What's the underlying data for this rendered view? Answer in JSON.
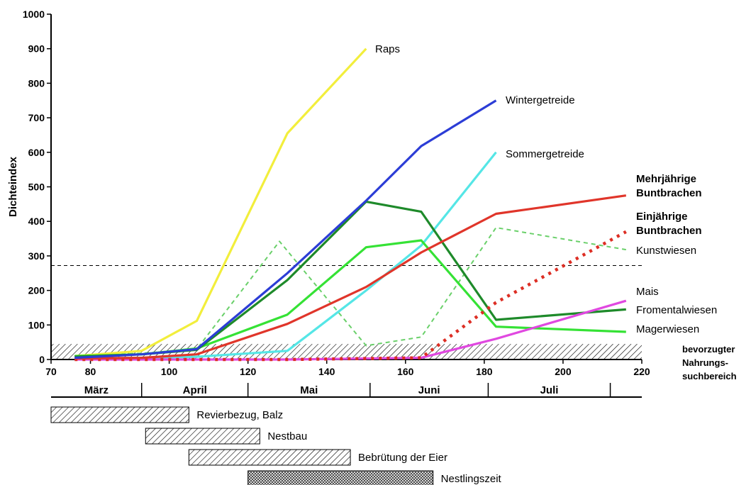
{
  "chart_data": {
    "type": "line",
    "title": "",
    "xlabel": "",
    "ylabel": "Dichteindex",
    "xlim": [
      70,
      220
    ],
    "ylim": [
      0,
      1000
    ],
    "x_ticks": [
      70,
      80,
      100,
      120,
      140,
      160,
      180,
      200,
      220
    ],
    "y_ticks": [
      0,
      100,
      200,
      300,
      400,
      500,
      600,
      700,
      800,
      900,
      1000
    ],
    "grid": false,
    "reference_line": {
      "y": 272,
      "style": "dashed"
    },
    "preferred_zone": {
      "y_min": 0,
      "y_max": 45,
      "label": [
        "bevorzugter",
        "Nahrungs-",
        "suchbereich"
      ]
    },
    "series": [
      {
        "name": "Raps",
        "color": "#f2ee3c",
        "style": "solid",
        "label_bold": false,
        "points": [
          [
            76,
            10
          ],
          [
            93,
            25
          ],
          [
            107,
            112
          ],
          [
            130,
            655
          ],
          [
            150,
            900
          ]
        ]
      },
      {
        "name": "Wintergetreide",
        "color": "#2c3dd6",
        "style": "solid",
        "label_bold": false,
        "points": [
          [
            76,
            5
          ],
          [
            93,
            15
          ],
          [
            107,
            30
          ],
          [
            130,
            250
          ],
          [
            150,
            460
          ],
          [
            164,
            618
          ],
          [
            183,
            750
          ]
        ]
      },
      {
        "name": "Sommergetreide",
        "color": "#55e6e6",
        "style": "solid",
        "label_bold": false,
        "points": [
          [
            76,
            3
          ],
          [
            93,
            5
          ],
          [
            107,
            8
          ],
          [
            130,
            25
          ],
          [
            150,
            200
          ],
          [
            164,
            330
          ],
          [
            183,
            600
          ]
        ]
      },
      {
        "name": "Mehrjährige Buntbrachen",
        "label_lines": [
          "Mehrjährige",
          "Buntbrachen"
        ],
        "color": "#e0352a",
        "style": "solid",
        "label_bold": true,
        "points": [
          [
            76,
            3
          ],
          [
            93,
            5
          ],
          [
            107,
            15
          ],
          [
            130,
            103
          ],
          [
            150,
            210
          ],
          [
            164,
            310
          ],
          [
            183,
            422
          ],
          [
            216,
            475
          ]
        ]
      },
      {
        "name": "Einjährige Buntbrachen",
        "label_lines": [
          "Einjährige",
          "Buntbrachen"
        ],
        "color": "#dd2e24",
        "style": "dotted",
        "label_bold": true,
        "points": [
          [
            76,
            0
          ],
          [
            93,
            0
          ],
          [
            130,
            0
          ],
          [
            164,
            5
          ],
          [
            183,
            165
          ],
          [
            216,
            370
          ]
        ]
      },
      {
        "name": "Kunstwiesen",
        "color": "#6ad06a",
        "style": "dashed",
        "label_bold": false,
        "points": [
          [
            76,
            10
          ],
          [
            93,
            18
          ],
          [
            107,
            30
          ],
          [
            128,
            342
          ],
          [
            150,
            40
          ],
          [
            164,
            65
          ],
          [
            183,
            382
          ],
          [
            216,
            318
          ]
        ]
      },
      {
        "name": "Mais",
        "color": "#e048e0",
        "style": "solid",
        "label_bold": false,
        "points": [
          [
            76,
            0
          ],
          [
            93,
            0
          ],
          [
            130,
            0
          ],
          [
            164,
            5
          ],
          [
            183,
            60
          ],
          [
            216,
            170
          ]
        ]
      },
      {
        "name": "Fromentalwiesen",
        "color": "#1e8a2a",
        "style": "solid",
        "label_bold": false,
        "points": [
          [
            76,
            8
          ],
          [
            93,
            15
          ],
          [
            107,
            28
          ],
          [
            130,
            230
          ],
          [
            150,
            457
          ],
          [
            164,
            428
          ],
          [
            183,
            115
          ],
          [
            216,
            145
          ]
        ]
      },
      {
        "name": "Magerwiesen",
        "color": "#35e235",
        "style": "solid",
        "label_bold": false,
        "points": [
          [
            76,
            10
          ],
          [
            93,
            15
          ],
          [
            107,
            32
          ],
          [
            130,
            130
          ],
          [
            150,
            325
          ],
          [
            164,
            345
          ],
          [
            183,
            95
          ],
          [
            216,
            80
          ]
        ]
      }
    ],
    "months": [
      {
        "label": "März",
        "from": 70,
        "to": 93
      },
      {
        "label": "April",
        "from": 93,
        "to": 120
      },
      {
        "label": "Mai",
        "from": 120,
        "to": 151
      },
      {
        "label": "Juni",
        "from": 151,
        "to": 181
      },
      {
        "label": "Juli",
        "from": 181,
        "to": 212
      }
    ],
    "phases": [
      {
        "label": "Revierbezug, Balz",
        "from": 70,
        "to": 105,
        "pattern": "hatch"
      },
      {
        "label": "Nestbau",
        "from": 94,
        "to": 123,
        "pattern": "hatch"
      },
      {
        "label": "Bebrütung der Eier",
        "from": 105,
        "to": 146,
        "pattern": "hatch"
      },
      {
        "label": "Nestlingszeit",
        "from": 120,
        "to": 167,
        "pattern": "crosshatch"
      }
    ]
  }
}
